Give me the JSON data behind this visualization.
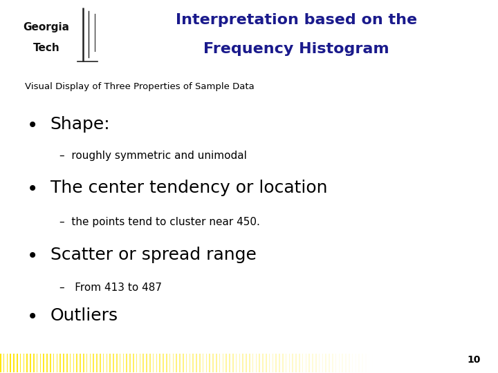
{
  "title_line1": "Interpretation based on the",
  "title_line2": "Frequency Histogram",
  "title_color": "#1a1a8c",
  "title_fontsize": 16,
  "subtitle": "Visual Display of Three Properties of Sample Data",
  "subtitle_fontsize": 9.5,
  "subtitle_fontweight": "normal",
  "bullet1": "Shape:",
  "sub_bullet1": "–  roughly symmetric and unimodal",
  "bullet2": "The center tendency or location",
  "sub_bullet2": "–  the points tend to cluster near 450.",
  "bullet3": "Scatter or spread range",
  "sub_bullet3": "–   From 413 to 487",
  "bullet4": "Outliers",
  "bullet_fontsize": 18,
  "sub_bullet_fontsize": 11,
  "bullet_color": "#000000",
  "background_color": "#ffffff",
  "header_line_color": "#f0c800",
  "page_number": "10",
  "gt_text_line1": "Georgia",
  "gt_text_line2": "Tech",
  "gt_fontsize": 11
}
